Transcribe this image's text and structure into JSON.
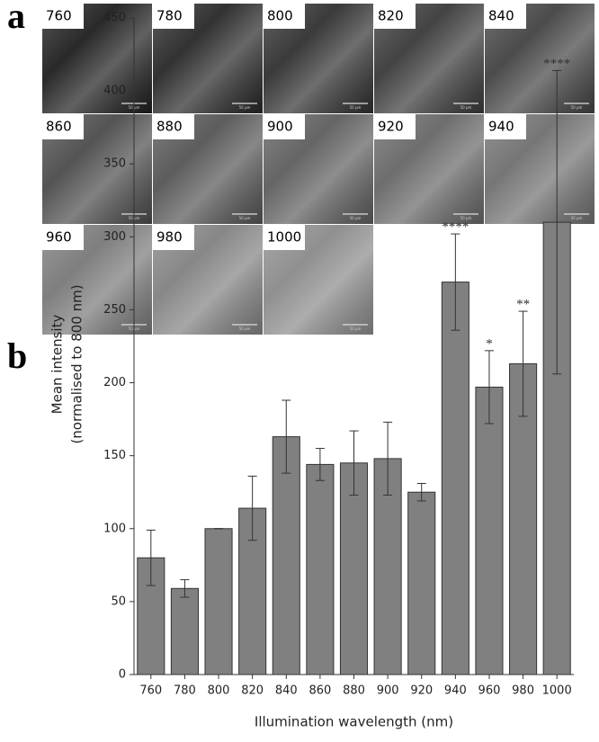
{
  "panel_a": {
    "label": "a",
    "scale_label": "50 μm",
    "tiles": [
      "760",
      "780",
      "800",
      "820",
      "840",
      "860",
      "880",
      "900",
      "920",
      "940",
      "960",
      "980",
      "1000"
    ]
  },
  "chart_data": {
    "type": "bar",
    "panel_label": "b",
    "categories": [
      "760",
      "780",
      "800",
      "820",
      "840",
      "860",
      "880",
      "900",
      "920",
      "940",
      "960",
      "980",
      "1000"
    ],
    "values": [
      80,
      59,
      100,
      114,
      163,
      144,
      145,
      148,
      125,
      269,
      197,
      213,
      310
    ],
    "errors": [
      19,
      6,
      0,
      22,
      25,
      11,
      22,
      25,
      6,
      33,
      25,
      36,
      104
    ],
    "significance": [
      null,
      null,
      null,
      null,
      null,
      null,
      null,
      null,
      null,
      "****",
      "*",
      "**",
      "****"
    ],
    "color": "#808080",
    "y_label": [
      "Mean intensity",
      "(normalised to 800 nm)"
    ],
    "x_label": "Illumination wavelength (nm)",
    "ylim": [
      0,
      450
    ],
    "yticks": [
      0,
      50,
      100,
      150,
      200,
      250,
      300,
      350,
      400,
      450
    ]
  }
}
